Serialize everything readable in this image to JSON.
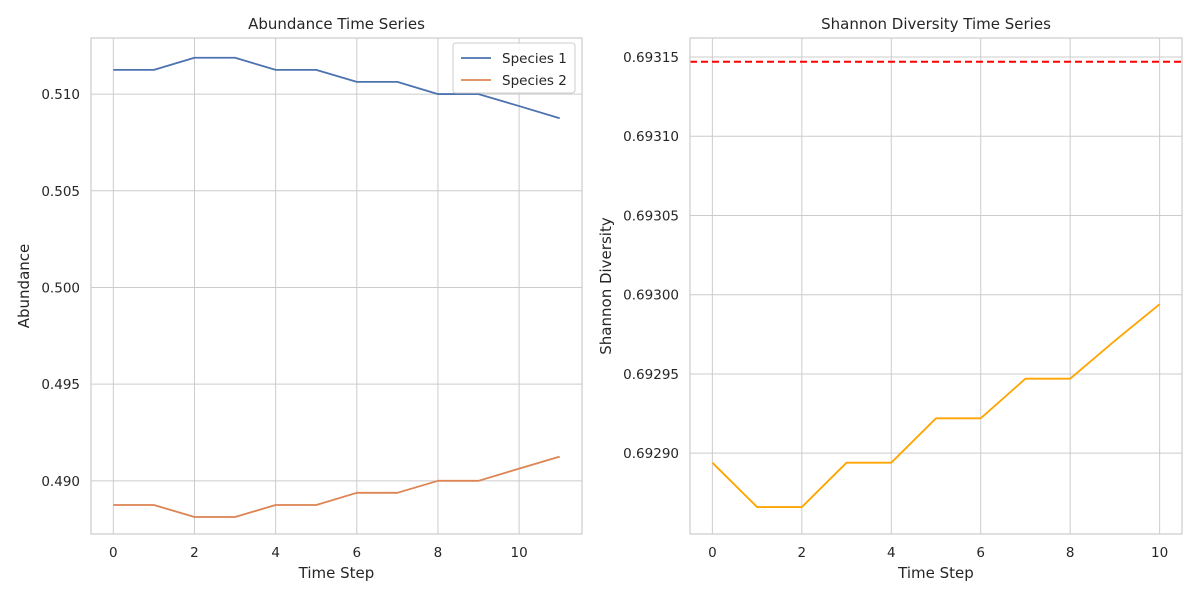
{
  "chart_data": [
    {
      "type": "line",
      "title": "Abundance Time Series",
      "xlabel": "Time Step",
      "ylabel": "Abundance",
      "xlim": [
        -0.55,
        11.55
      ],
      "ylim": [
        0.48725,
        0.5129
      ],
      "xticks": [
        0,
        2,
        4,
        6,
        8,
        10
      ],
      "yticks": [
        0.49,
        0.495,
        0.5,
        0.505,
        0.51
      ],
      "ytick_labels": [
        "0.490",
        "0.495",
        "0.500",
        "0.505",
        "0.510"
      ],
      "grid": true,
      "legend": "top-right",
      "x": [
        0,
        1,
        2,
        3,
        4,
        5,
        6,
        7,
        8,
        9,
        10,
        11
      ],
      "series": [
        {
          "name": "Species 1",
          "color": "#4c72b0",
          "values": [
            0.51125,
            0.51125,
            0.51188,
            0.51188,
            0.51125,
            0.51125,
            0.51063,
            0.51063,
            0.51,
            0.51,
            0.50938,
            0.50875
          ]
        },
        {
          "name": "Species 2",
          "color": "#dd8452",
          "values": [
            0.48875,
            0.48875,
            0.48813,
            0.48813,
            0.48875,
            0.48875,
            0.48938,
            0.48938,
            0.49,
            0.49,
            0.49063,
            0.49125
          ]
        }
      ]
    },
    {
      "type": "line",
      "title": "Shannon Diversity Time Series",
      "xlabel": "Time Step",
      "ylabel": "Shannon Diversity",
      "xlim": [
        -0.5,
        10.5
      ],
      "ylim": [
        0.692849,
        0.693162
      ],
      "xticks": [
        0,
        2,
        4,
        6,
        8,
        10
      ],
      "yticks": [
        0.6929,
        0.69295,
        0.693,
        0.69305,
        0.6931,
        0.69315
      ],
      "ytick_labels": [
        "0.69290",
        "0.69295",
        "0.69300",
        "0.69305",
        "0.69310",
        "0.69315"
      ],
      "grid": true,
      "x": [
        0,
        1,
        2,
        3,
        4,
        5,
        6,
        7,
        8,
        9,
        10
      ],
      "series": [
        {
          "color": "#ffa500",
          "values": [
            0.692894,
            0.692866,
            0.692866,
            0.692894,
            0.692894,
            0.692922,
            0.692922,
            0.692947,
            0.692947,
            0.692971,
            0.692994
          ]
        }
      ],
      "reference_line": {
        "y": 0.693147,
        "color": "#ff0000",
        "style": "dashed"
      }
    }
  ]
}
